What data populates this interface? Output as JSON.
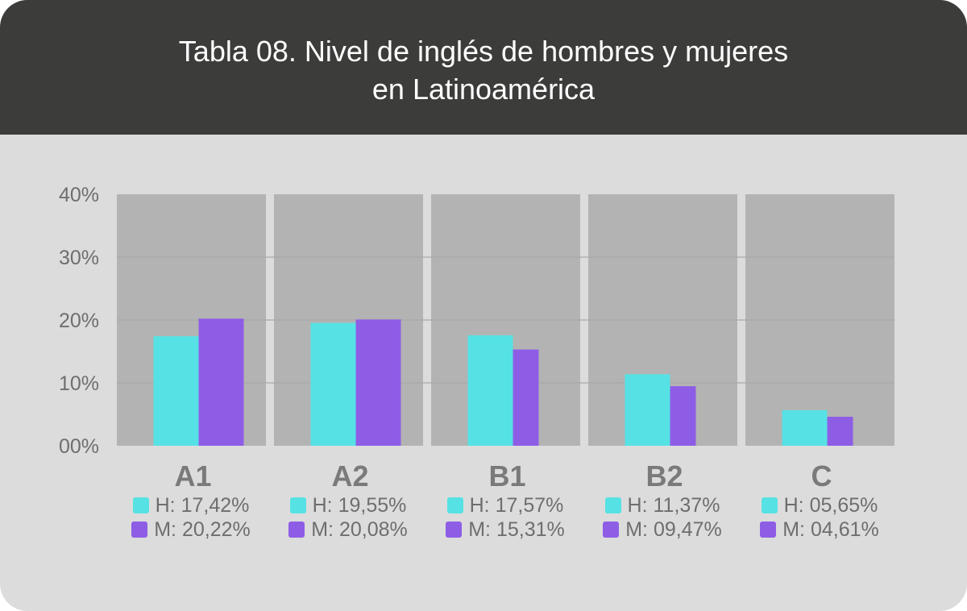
{
  "header": {
    "title": "Tabla 08. Nivel de inglés de hombres y mujeres en Latinoamérica"
  },
  "colors": {
    "hombres": "#56e2e4",
    "mujeres": "#8e5de6",
    "panel": "#b3b3b3",
    "header_bg": "#3c3c3b",
    "card_bg": "#dcdcdc"
  },
  "chart_data": {
    "type": "bar",
    "title": "Tabla 08. Nivel de inglés de hombres y mujeres en Latinoamérica",
    "categories": [
      "A1",
      "A2",
      "B1",
      "B2",
      "C"
    ],
    "series": [
      {
        "key": "H",
        "values": [
          17.42,
          19.55,
          17.57,
          11.37,
          5.65
        ]
      },
      {
        "key": "M",
        "values": [
          20.22,
          20.08,
          15.31,
          9.47,
          4.61
        ]
      }
    ],
    "ylim": [
      0,
      40
    ],
    "yticks": [
      "00%",
      "10%",
      "20%",
      "30%",
      "40%"
    ],
    "grid": true
  },
  "legend": [
    {
      "h": "H: 17,42%",
      "m": "M: 20,22%"
    },
    {
      "h": "H: 19,55%",
      "m": "M: 20,08%"
    },
    {
      "h": "H: 17,57%",
      "m": "M: 15,31%"
    },
    {
      "h": "H: 11,37%",
      "m": "M: 09,47%"
    },
    {
      "h": "H: 05,65%",
      "m": "M: 04,61%"
    }
  ]
}
